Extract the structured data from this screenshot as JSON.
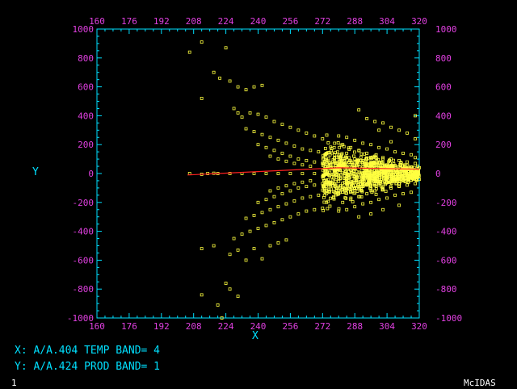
{
  "colors": {
    "background": "#000000",
    "frame": "#00e0ff",
    "tick_labels": "#e040e0",
    "points": "#ffff40",
    "fit_line": "#ff2020",
    "text": "#00e0ff"
  },
  "labels": {
    "x_axis": "X",
    "y_axis": "Y",
    "x_info": "X:  A/A.404 TEMP BAND= 4",
    "y_info": "Y:  A/A.424 PROD BAND= 1",
    "frame_number": "1",
    "product": "McIDAS"
  },
  "chart_data": {
    "type": "scatter",
    "xlim": [
      160,
      320
    ],
    "ylim": [
      -1000,
      1000
    ],
    "x_ticks": [
      "160",
      "176",
      "192",
      "208",
      "224",
      "240",
      "256",
      "272",
      "288",
      "304",
      "320"
    ],
    "y_ticks": [
      "1000",
      "800",
      "600",
      "400",
      "200",
      "0",
      "-200",
      "-400",
      "-600",
      "-800",
      "-1000"
    ],
    "grid": false,
    "fit_line": [
      [
        205,
        -10
      ],
      [
        280,
        40
      ],
      [
        320,
        30
      ]
    ],
    "series": [
      {
        "marker": "square",
        "points": [
          [
            206,
            840
          ],
          [
            212,
            910
          ],
          [
            212,
            520
          ],
          [
            218,
            700
          ],
          [
            224,
            870
          ],
          [
            221,
            660
          ],
          [
            226,
            640
          ],
          [
            230,
            600
          ],
          [
            234,
            580
          ],
          [
            238,
            600
          ],
          [
            242,
            610
          ],
          [
            228,
            450
          ],
          [
            230,
            420
          ],
          [
            232,
            390
          ],
          [
            236,
            420
          ],
          [
            240,
            410
          ],
          [
            244,
            390
          ],
          [
            248,
            360
          ],
          [
            252,
            340
          ],
          [
            256,
            320
          ],
          [
            260,
            300
          ],
          [
            264,
            280
          ],
          [
            268,
            260
          ],
          [
            272,
            240
          ],
          [
            234,
            310
          ],
          [
            238,
            290
          ],
          [
            242,
            270
          ],
          [
            246,
            250
          ],
          [
            250,
            230
          ],
          [
            254,
            210
          ],
          [
            258,
            190
          ],
          [
            262,
            170
          ],
          [
            266,
            160
          ],
          [
            270,
            150
          ],
          [
            274,
            140
          ],
          [
            278,
            130
          ],
          [
            240,
            200
          ],
          [
            244,
            180
          ],
          [
            248,
            160
          ],
          [
            252,
            140
          ],
          [
            256,
            120
          ],
          [
            260,
            100
          ],
          [
            264,
            90
          ],
          [
            268,
            80
          ],
          [
            272,
            70
          ],
          [
            276,
            60
          ],
          [
            280,
            55
          ],
          [
            284,
            50
          ],
          [
            246,
            120
          ],
          [
            250,
            100
          ],
          [
            254,
            85
          ],
          [
            258,
            70
          ],
          [
            262,
            60
          ],
          [
            266,
            50
          ],
          [
            215,
            0
          ],
          [
            220,
            0
          ],
          [
            226,
            0
          ],
          [
            232,
            0
          ],
          [
            238,
            0
          ],
          [
            244,
            0
          ],
          [
            250,
            0
          ],
          [
            256,
            0
          ],
          [
            262,
            0
          ],
          [
            268,
            0
          ],
          [
            274,
            0
          ],
          [
            206,
            0
          ],
          [
            212,
            -5
          ],
          [
            218,
            2
          ],
          [
            246,
            -120
          ],
          [
            250,
            -100
          ],
          [
            254,
            -85
          ],
          [
            258,
            -70
          ],
          [
            262,
            -60
          ],
          [
            266,
            -50
          ],
          [
            240,
            -200
          ],
          [
            244,
            -180
          ],
          [
            248,
            -160
          ],
          [
            252,
            -140
          ],
          [
            256,
            -120
          ],
          [
            260,
            -100
          ],
          [
            264,
            -90
          ],
          [
            268,
            -80
          ],
          [
            272,
            -70
          ],
          [
            276,
            -60
          ],
          [
            280,
            -55
          ],
          [
            234,
            -310
          ],
          [
            238,
            -290
          ],
          [
            242,
            -270
          ],
          [
            246,
            -250
          ],
          [
            250,
            -230
          ],
          [
            254,
            -210
          ],
          [
            258,
            -190
          ],
          [
            262,
            -170
          ],
          [
            266,
            -160
          ],
          [
            270,
            -150
          ],
          [
            274,
            -140
          ],
          [
            278,
            -130
          ],
          [
            228,
            -450
          ],
          [
            232,
            -420
          ],
          [
            236,
            -400
          ],
          [
            240,
            -380
          ],
          [
            244,
            -360
          ],
          [
            248,
            -340
          ],
          [
            252,
            -320
          ],
          [
            256,
            -300
          ],
          [
            260,
            -280
          ],
          [
            264,
            -260
          ],
          [
            268,
            -250
          ],
          [
            272,
            -240
          ],
          [
            226,
            -560
          ],
          [
            230,
            -530
          ],
          [
            234,
            -600
          ],
          [
            238,
            -520
          ],
          [
            242,
            -590
          ],
          [
            246,
            -500
          ],
          [
            250,
            -480
          ],
          [
            254,
            -460
          ],
          [
            212,
            -520
          ],
          [
            218,
            -500
          ],
          [
            224,
            -760
          ],
          [
            226,
            -800
          ],
          [
            230,
            -850
          ],
          [
            212,
            -840
          ],
          [
            220,
            -910
          ],
          [
            222,
            -1000
          ],
          [
            280,
            260
          ],
          [
            284,
            250
          ],
          [
            288,
            230
          ],
          [
            292,
            210
          ],
          [
            296,
            200
          ],
          [
            300,
            180
          ],
          [
            304,
            170
          ],
          [
            308,
            150
          ],
          [
            312,
            140
          ],
          [
            316,
            130
          ],
          [
            318,
            110
          ],
          [
            282,
            200
          ],
          [
            286,
            180
          ],
          [
            290,
            160
          ],
          [
            294,
            140
          ],
          [
            298,
            120
          ],
          [
            302,
            110
          ],
          [
            306,
            100
          ],
          [
            310,
            90
          ],
          [
            314,
            80
          ],
          [
            318,
            70
          ],
          [
            280,
            120
          ],
          [
            284,
            110
          ],
          [
            288,
            100
          ],
          [
            292,
            90
          ],
          [
            296,
            80
          ],
          [
            300,
            70
          ],
          [
            304,
            60
          ],
          [
            308,
            55
          ],
          [
            312,
            50
          ],
          [
            316,
            45
          ],
          [
            320,
            40
          ],
          [
            280,
            -120
          ],
          [
            284,
            -110
          ],
          [
            288,
            -100
          ],
          [
            292,
            -90
          ],
          [
            296,
            -80
          ],
          [
            300,
            -70
          ],
          [
            304,
            -60
          ],
          [
            308,
            -55
          ],
          [
            312,
            -50
          ],
          [
            316,
            -45
          ],
          [
            320,
            -40
          ],
          [
            282,
            -200
          ],
          [
            286,
            -180
          ],
          [
            290,
            -160
          ],
          [
            294,
            -140
          ],
          [
            298,
            -120
          ],
          [
            302,
            -110
          ],
          [
            306,
            -100
          ],
          [
            310,
            -90
          ],
          [
            314,
            -80
          ],
          [
            318,
            -70
          ],
          [
            280,
            -260
          ],
          [
            284,
            -250
          ],
          [
            288,
            -230
          ],
          [
            292,
            -210
          ],
          [
            296,
            -200
          ],
          [
            300,
            -180
          ],
          [
            304,
            -170
          ],
          [
            308,
            -150
          ],
          [
            312,
            -140
          ],
          [
            316,
            -130
          ],
          [
            290,
            440
          ],
          [
            294,
            380
          ],
          [
            298,
            360
          ],
          [
            302,
            350
          ],
          [
            306,
            320
          ],
          [
            310,
            300
          ],
          [
            314,
            280
          ],
          [
            318,
            240
          ],
          [
            290,
            -300
          ],
          [
            296,
            -280
          ],
          [
            302,
            -250
          ],
          [
            310,
            -220
          ],
          [
            318,
            400
          ],
          [
            306,
            220
          ],
          [
            300,
            300
          ]
        ]
      }
    ]
  }
}
